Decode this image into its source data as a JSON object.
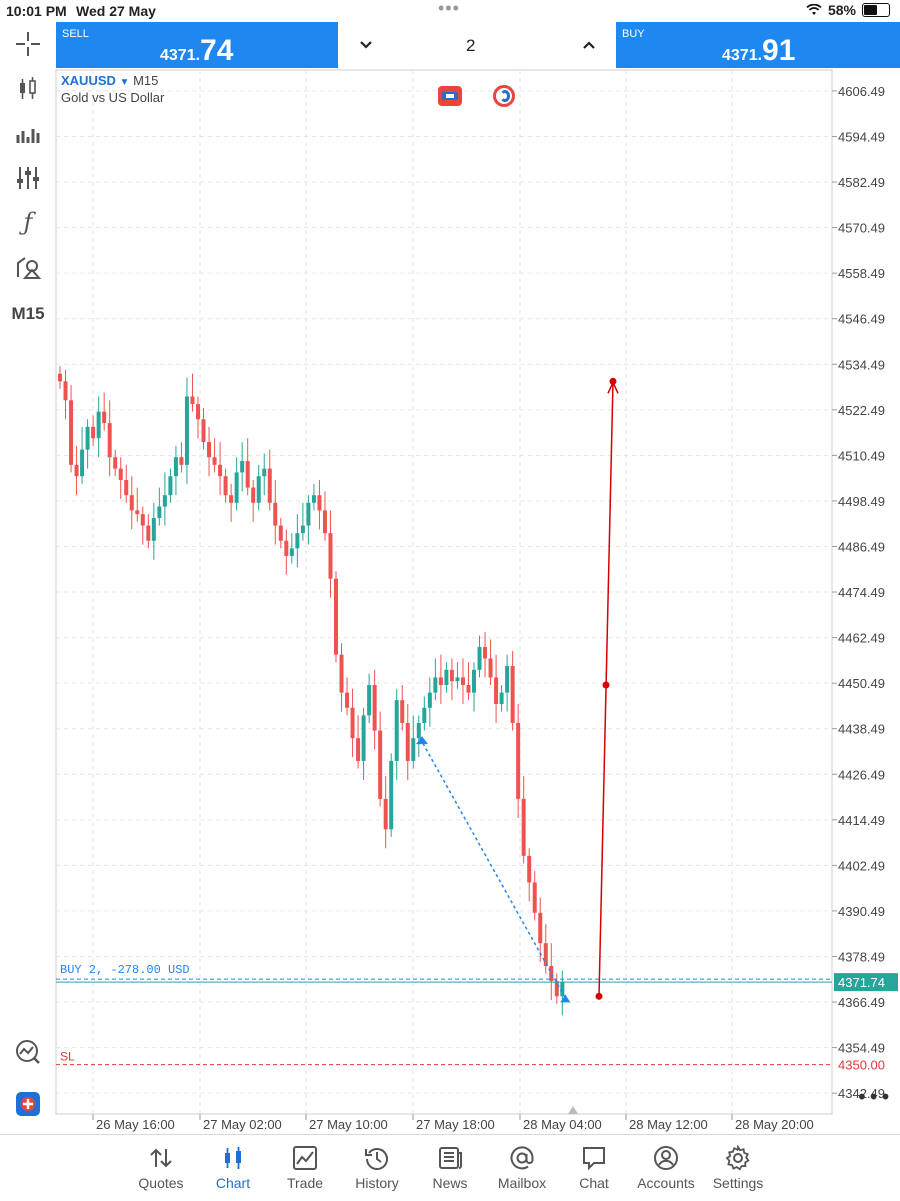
{
  "status": {
    "time": "10:01 PM",
    "date": "Wed 27 May",
    "battery": "58%"
  },
  "trade_bar": {
    "sell_label": "SELL",
    "sell_price_small": "4371.",
    "sell_price_big": "74",
    "buy_label": "BUY",
    "buy_price_small": "4371.",
    "buy_price_big": "91",
    "lot": "2"
  },
  "symbol": {
    "name": "XAUUSD",
    "timeframe": "M15",
    "description": "Gold vs US Dollar"
  },
  "toolbar": {
    "timeframe_button": "M15"
  },
  "colors": {
    "accent": "#1e88f0",
    "bull": "#26a69a",
    "bear": "#ef5350",
    "sl": "#e53935",
    "trend_line": "#d50000",
    "blue_line": "#1e88f0"
  },
  "chart_data": {
    "type": "candlestick",
    "price_axis_labels": [
      "4606.49",
      "4594.49",
      "4582.49",
      "4570.49",
      "4558.49",
      "4546.49",
      "4534.49",
      "4522.49",
      "4510.49",
      "4498.49",
      "4486.49",
      "4474.49",
      "4462.49",
      "4450.49",
      "4438.49",
      "4426.49",
      "4414.49",
      "4402.49",
      "4390.49",
      "4378.49",
      "4366.49",
      "4354.49",
      "4342.49"
    ],
    "time_axis_labels": [
      "26 May 16:00",
      "27 May 02:00",
      "27 May 10:00",
      "27 May 18:00",
      "28 May 04:00",
      "28 May 12:00",
      "28 May 20:00"
    ],
    "ylim": [
      4337,
      4612
    ],
    "current_price": "4371.74",
    "position_label": "BUY 2, -278.00 USD",
    "sl_label": "SL",
    "sl_price": "4350.00",
    "closes": [
      4530,
      4525,
      4508,
      4505,
      4512,
      4518,
      4515,
      4522,
      4519,
      4510,
      4507,
      4504,
      4500,
      4496,
      4495,
      4492,
      4488,
      4494,
      4497,
      4500,
      4505,
      4510,
      4508,
      4526,
      4524,
      4520,
      4514,
      4510,
      4508,
      4505,
      4500,
      4498,
      4506,
      4509,
      4502,
      4498,
      4505,
      4507,
      4498,
      4492,
      4488,
      4484,
      4486,
      4490,
      4492,
      4498,
      4500,
      4496,
      4490,
      4478,
      4458,
      4448,
      4444,
      4436,
      4430,
      4442,
      4450,
      4438,
      4420,
      4412,
      4430,
      4446,
      4440,
      4430,
      4436,
      4440,
      4444,
      4448,
      4452,
      4450,
      4454,
      4451,
      4452,
      4450,
      4448,
      4454,
      4460,
      4457,
      4452,
      4445,
      4448,
      4455,
      4440,
      4420,
      4405,
      4398,
      4390,
      4382,
      4376,
      4372,
      4368,
      4371.74
    ]
  }
}
